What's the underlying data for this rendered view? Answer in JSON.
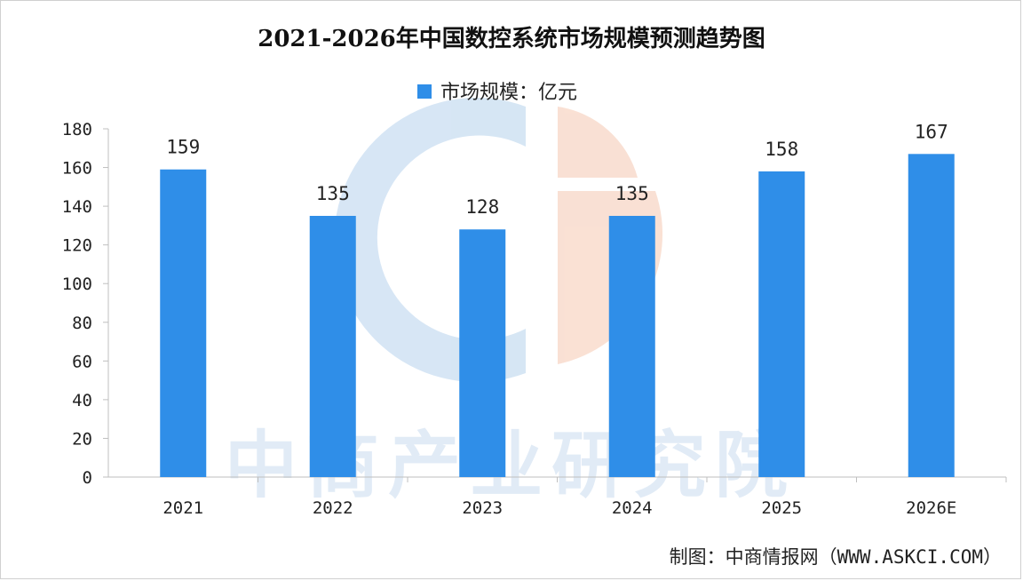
{
  "chart_data": {
    "type": "bar",
    "title": "2021-2026年中国数控系统市场规模预测趋势图",
    "legend": {
      "placement": "top-center"
    },
    "categories": [
      "2021",
      "2022",
      "2023",
      "2024",
      "2025",
      "2026E"
    ],
    "series": [
      {
        "name": "市场规模：亿元",
        "values": [
          159,
          135,
          128,
          135,
          158,
          167
        ],
        "color": "#2f8ee8"
      }
    ],
    "data_labels": [
      "159",
      "135",
      "128",
      "135",
      "158",
      "167"
    ],
    "yticks": [
      "0",
      "20",
      "40",
      "60",
      "80",
      "100",
      "120",
      "140",
      "160",
      "180"
    ],
    "ylim": [
      0,
      180
    ],
    "xlabel": "",
    "ylabel": "",
    "grid": false
  },
  "watermark": {
    "text": "中商产业研究院"
  },
  "source": "制图：中商情报网（WWW.ASKCI.COM）"
}
